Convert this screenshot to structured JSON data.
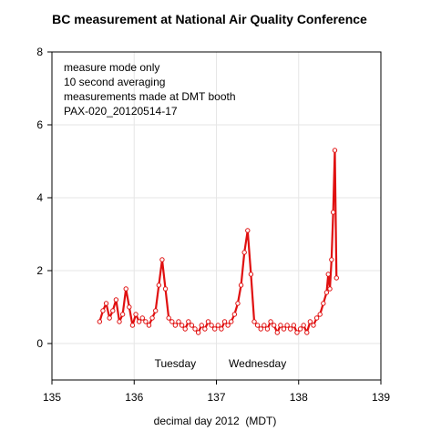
{
  "chart_data": {
    "type": "scatter",
    "title": "BC measurement at National Air Quality Conference",
    "xlabel": "decimal day 2012  (MDT)",
    "ylabel": "",
    "xlim": [
      135,
      139
    ],
    "ylim": [
      -1,
      8
    ],
    "xticks": [
      "135",
      "136",
      "137",
      "138",
      "139"
    ],
    "yticks": [
      "0",
      "2",
      "4",
      "6",
      "8"
    ],
    "grid": true,
    "notes": [
      "measure mode only",
      "10 second averaging",
      "measurements made at DMT booth",
      "PAX-020_20120514-17"
    ],
    "day_labels": [
      {
        "text": "Tuesday",
        "x": 136.5,
        "y": -0.65
      },
      {
        "text": "Wednesday",
        "x": 137.5,
        "y": -0.65
      }
    ],
    "series": [
      {
        "color": "#e01010",
        "x": [
          135.58,
          135.62,
          135.66,
          135.7,
          135.74,
          135.78,
          135.82,
          135.86,
          135.9,
          135.94,
          135.98,
          136.02,
          136.06,
          136.1,
          136.14,
          136.18,
          136.22,
          136.26,
          136.3,
          136.34,
          136.38,
          136.42,
          136.46,
          136.5,
          136.54,
          136.58,
          136.62,
          136.66,
          136.7,
          136.74,
          136.78,
          136.82,
          136.86,
          136.9,
          136.94,
          136.98,
          137.02,
          137.06,
          137.1,
          137.14,
          137.18,
          137.22,
          137.26,
          137.3,
          137.34,
          137.38,
          137.42,
          137.46,
          137.5,
          137.54,
          137.58,
          137.62,
          137.66,
          137.7,
          137.74,
          137.78,
          137.82,
          137.86,
          137.9,
          137.94,
          137.98,
          138.02,
          138.06,
          138.1,
          138.14,
          138.18,
          138.22,
          138.26,
          138.3,
          138.34,
          138.36,
          138.38,
          138.4,
          138.42,
          138.44,
          138.46
        ],
        "y": [
          0.6,
          0.9,
          1.1,
          0.7,
          0.9,
          1.2,
          0.6,
          0.8,
          1.5,
          1.0,
          0.5,
          0.8,
          0.6,
          0.7,
          0.6,
          0.5,
          0.7,
          0.9,
          1.6,
          2.3,
          1.5,
          0.7,
          0.6,
          0.5,
          0.6,
          0.5,
          0.4,
          0.6,
          0.5,
          0.4,
          0.3,
          0.5,
          0.4,
          0.6,
          0.5,
          0.4,
          0.5,
          0.4,
          0.6,
          0.5,
          0.6,
          0.8,
          1.1,
          1.6,
          2.5,
          3.1,
          1.9,
          0.6,
          0.5,
          0.4,
          0.5,
          0.4,
          0.6,
          0.5,
          0.3,
          0.5,
          0.4,
          0.5,
          0.4,
          0.5,
          0.3,
          0.4,
          0.5,
          0.3,
          0.6,
          0.5,
          0.7,
          0.8,
          1.1,
          1.4,
          1.9,
          1.5,
          2.3,
          3.6,
          5.3,
          1.8
        ]
      }
    ]
  }
}
